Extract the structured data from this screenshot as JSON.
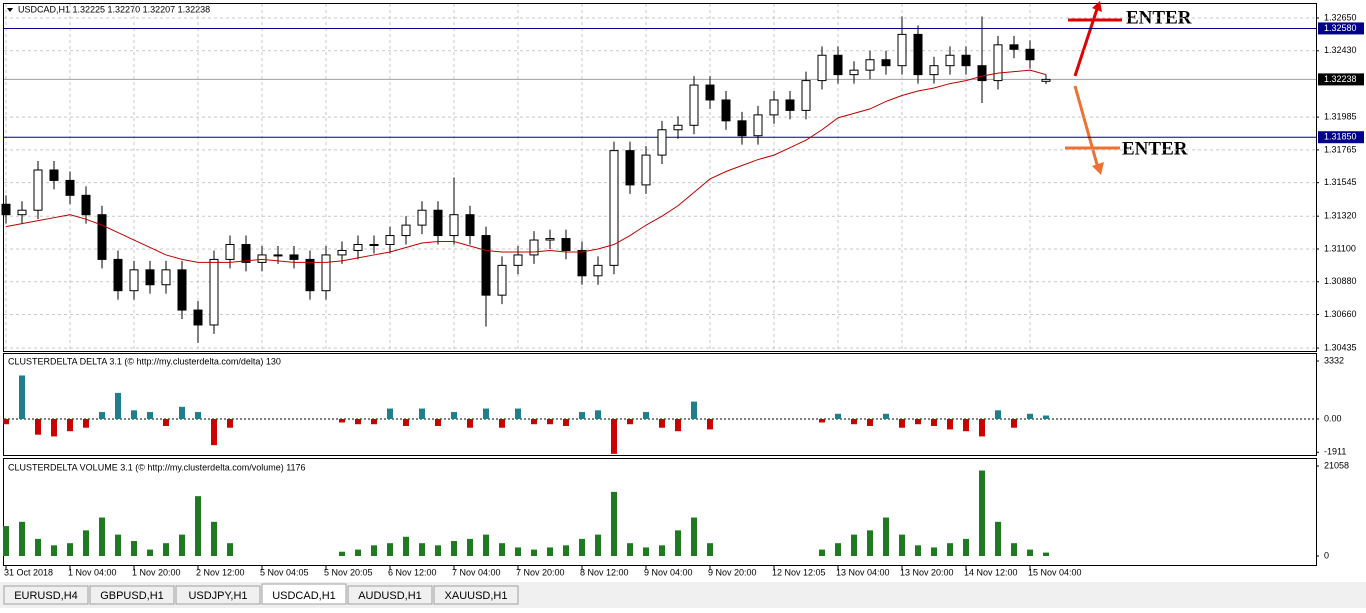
{
  "chart_data": [
    {
      "type": "candlestick",
      "title": "USDCAD,H1  1.32225 1.32270 1.32207 1.32238",
      "categories": [
        "31 Oct 2018",
        null,
        null,
        null,
        "1 Nov 04:00",
        null,
        null,
        null,
        "1 Nov 20:00",
        null,
        null,
        null,
        "2 Nov 12:00",
        null,
        null,
        null,
        "5 Nov 04:05",
        null,
        null,
        null,
        "5 Nov 20:05",
        null,
        null,
        null,
        "6 Nov 12:00",
        null,
        null,
        null,
        "7 Nov 04:00",
        null,
        null,
        null,
        "7 Nov 20:00",
        null,
        null,
        null,
        "8 Nov 12:00",
        null,
        null,
        null,
        "9 Nov 04:00",
        null,
        null,
        null,
        "9 Nov 20:00",
        null,
        null,
        null,
        "12 Nov 12:05",
        null,
        null,
        null,
        "13 Nov 04:00",
        null,
        null,
        null,
        "13 Nov 20:00",
        null,
        null,
        null,
        "14 Nov 12:00",
        null,
        null,
        null,
        "15 Nov 04:00",
        null
      ],
      "open": [
        1.314,
        1.3133,
        1.3136,
        1.3163,
        1.3156,
        1.3146,
        1.3133,
        1.3103,
        1.3082,
        1.3096,
        1.3086,
        1.3096,
        1.3069,
        1.3059,
        1.3103,
        1.3113,
        1.3101,
        1.3106,
        1.3106,
        1.3103,
        1.3082,
        1.3106,
        1.3109,
        1.3113,
        1.3113,
        1.3119,
        1.3126,
        1.3136,
        1.3119,
        1.3133,
        1.3119,
        1.3079,
        1.3099,
        1.3106,
        1.3116,
        1.3117,
        1.3109,
        1.3092,
        1.3099,
        1.3176,
        1.3153,
        1.3173,
        1.319,
        1.3193,
        1.322,
        1.321,
        1.3196,
        1.3186,
        1.32,
        1.321,
        1.3203,
        1.3223,
        1.324,
        1.3227,
        1.323,
        1.3237,
        1.3233,
        1.3254,
        1.3227,
        1.3233,
        1.324,
        1.3233,
        1.3223,
        1.3247,
        1.3244,
        1.32225
      ],
      "high": [
        1.3146,
        1.3142,
        1.3169,
        1.3169,
        1.3162,
        1.3152,
        1.3139,
        1.3109,
        1.3102,
        1.3102,
        1.3102,
        1.3102,
        1.3075,
        1.3109,
        1.3119,
        1.3119,
        1.3112,
        1.3112,
        1.3112,
        1.3109,
        1.3112,
        1.3115,
        1.3119,
        1.3119,
        1.3125,
        1.3132,
        1.3142,
        1.3142,
        1.3158,
        1.3139,
        1.3125,
        1.3105,
        1.3112,
        1.3122,
        1.3123,
        1.3123,
        1.3115,
        1.3105,
        1.3182,
        1.3182,
        1.3179,
        1.3196,
        1.3199,
        1.3226,
        1.3226,
        1.3216,
        1.3202,
        1.3206,
        1.3216,
        1.3216,
        1.3229,
        1.3246,
        1.3246,
        1.3236,
        1.3243,
        1.3243,
        1.3266,
        1.326,
        1.3239,
        1.3246,
        1.3246,
        1.3266,
        1.3253,
        1.3253,
        1.325,
        1.3227
      ],
      "low": [
        1.3127,
        1.3127,
        1.313,
        1.315,
        1.314,
        1.3127,
        1.3097,
        1.3076,
        1.3076,
        1.308,
        1.308,
        1.3063,
        1.3047,
        1.3053,
        1.3097,
        1.3095,
        1.3095,
        1.31,
        1.3097,
        1.3076,
        1.3076,
        1.31,
        1.3103,
        1.3107,
        1.3107,
        1.3113,
        1.312,
        1.3113,
        1.3113,
        1.3113,
        1.3058,
        1.3073,
        1.3093,
        1.31,
        1.311,
        1.3103,
        1.3086,
        1.3086,
        1.3093,
        1.3147,
        1.3147,
        1.3167,
        1.3184,
        1.3187,
        1.3204,
        1.319,
        1.318,
        1.318,
        1.3194,
        1.3197,
        1.3197,
        1.3217,
        1.3221,
        1.3221,
        1.3224,
        1.3227,
        1.3227,
        1.3221,
        1.3221,
        1.3227,
        1.3227,
        1.3208,
        1.3217,
        1.3238,
        1.3231,
        1.32207
      ],
      "close": [
        1.3133,
        1.3136,
        1.3163,
        1.3156,
        1.3146,
        1.3133,
        1.3103,
        1.3082,
        1.3096,
        1.3086,
        1.3096,
        1.3069,
        1.3059,
        1.3103,
        1.3113,
        1.3101,
        1.3106,
        1.3106,
        1.3103,
        1.3082,
        1.3106,
        1.3109,
        1.3113,
        1.3113,
        1.3119,
        1.3126,
        1.3136,
        1.3119,
        1.3133,
        1.3119,
        1.3079,
        1.3099,
        1.3106,
        1.3116,
        1.3117,
        1.3109,
        1.3092,
        1.3099,
        1.3176,
        1.3153,
        1.3173,
        1.319,
        1.3193,
        1.322,
        1.321,
        1.3196,
        1.3186,
        1.32,
        1.321,
        1.3203,
        1.3223,
        1.324,
        1.3227,
        1.323,
        1.3237,
        1.3233,
        1.3254,
        1.3227,
        1.3233,
        1.324,
        1.3233,
        1.3223,
        1.3247,
        1.3244,
        1.3237,
        1.32238
      ],
      "up_color": "#ffffff",
      "down_color": "#000000",
      "outline_color": "#000000",
      "ma": {
        "color": "#c00000",
        "values": [
          1.3125,
          1.3127,
          1.3129,
          1.3131,
          1.3133,
          1.313,
          1.3126,
          1.3121,
          1.3116,
          1.3111,
          1.3106,
          1.3103,
          1.3101,
          1.3101,
          1.3101,
          1.3102,
          1.3103,
          1.3102,
          1.3101,
          1.3101,
          1.3101,
          1.3102,
          1.3104,
          1.3106,
          1.3108,
          1.3111,
          1.3114,
          1.3115,
          1.3115,
          1.3112,
          1.3109,
          1.3108,
          1.3108,
          1.3108,
          1.3109,
          1.3108,
          1.3108,
          1.311,
          1.3113,
          1.3119,
          1.3126,
          1.3132,
          1.3139,
          1.3148,
          1.3157,
          1.3162,
          1.3166,
          1.317,
          1.3173,
          1.3178,
          1.3183,
          1.319,
          1.3198,
          1.3201,
          1.3204,
          1.3209,
          1.3213,
          1.3216,
          1.3218,
          1.3221,
          1.3223,
          1.3226,
          1.3228,
          1.3229,
          1.323,
          1.3227
        ]
      },
      "hlines": [
        {
          "value": 1.3258,
          "label": "1.32580",
          "color": "#00008b"
        },
        {
          "value": 1.3185,
          "label": "1.31850",
          "color": "#00008b"
        },
        {
          "value": 1.32238,
          "label": "1.32238",
          "color": "#a0a0a0"
        }
      ],
      "ylim": [
        1.30422,
        1.32744
      ],
      "yticks": [
        {
          "value": 1.3265,
          "label": "1.32650"
        },
        {
          "value": 1.3243,
          "label": "1.32430"
        },
        {
          "value": 1.31985,
          "label": "1.31985"
        },
        {
          "value": 1.31765,
          "label": "1.31765"
        },
        {
          "value": 1.31545,
          "label": "1.31545"
        },
        {
          "value": 1.3132,
          "label": "1.31320"
        },
        {
          "value": 1.311,
          "label": "1.31100"
        },
        {
          "value": 1.3088,
          "label": "1.30880"
        },
        {
          "value": 1.3066,
          "label": "1.30660"
        },
        {
          "value": 1.30435,
          "label": "1.30435"
        }
      ],
      "grid": true,
      "annotations": [
        {
          "text": "ENTER",
          "color": "#e00000"
        },
        {
          "text": "ENTER",
          "color": "#f07030"
        }
      ]
    },
    {
      "type": "bar",
      "title": "CLUSTERDELTA DELTA 3.1 (© http://my.clusterdelta.com/delta) 130",
      "values": [
        -300,
        2500,
        -900,
        -1000,
        -700,
        -500,
        400,
        1500,
        500,
        400,
        -400,
        700,
        400,
        -1500,
        -500,
        null,
        null,
        null,
        null,
        null,
        null,
        -200,
        -300,
        -300,
        600,
        -400,
        600,
        -400,
        400,
        -500,
        600,
        -500,
        600,
        -300,
        -300,
        -400,
        400,
        500,
        -2000,
        -300,
        400,
        -500,
        -700,
        1000,
        -600,
        null,
        null,
        null,
        null,
        null,
        null,
        -200,
        300,
        -300,
        -400,
        300,
        -500,
        -300,
        -400,
        -600,
        -700,
        -1000,
        500,
        -500,
        300,
        200
      ],
      "positive_color": "#1f7f8c",
      "negative_color": "#cc0000",
      "ylim": [
        -2125,
        3734
      ],
      "yticks": [
        3332,
        {
          "value": 0,
          "label": "0.00"
        },
        -1911
      ]
    },
    {
      "type": "bar",
      "title": "CLUSTERDELTA VOLUME 3.1 (© http://my.clusterdelta.com/volume) 1176",
      "values": [
        7000,
        8000,
        4000,
        2500,
        3000,
        6000,
        9000,
        5000,
        3500,
        1500,
        3000,
        5000,
        14000,
        8000,
        3000,
        null,
        null,
        null,
        null,
        null,
        null,
        1000,
        1500,
        2500,
        3000,
        4500,
        3000,
        2500,
        3500,
        4000,
        5000,
        3000,
        2000,
        1500,
        2000,
        2500,
        4000,
        5000,
        15000,
        3000,
        2000,
        2500,
        6000,
        9000,
        3000,
        null,
        null,
        null,
        null,
        null,
        null,
        1500,
        3000,
        5000,
        6000,
        9000,
        5000,
        2500,
        2000,
        3000,
        4000,
        20000,
        8000,
        3000,
        1500,
        800
      ],
      "color": "#1e7b1e",
      "ylim": [
        -2106,
        22696
      ],
      "yticks": [
        0,
        21058
      ]
    }
  ],
  "tabs": [
    "EURUSD,H4",
    "GBPUSD,H1",
    "USDJPY,H1",
    "USDCAD,H1",
    "AUDUSD,H1",
    "XAUUSD,H1"
  ],
  "active_tab": 3
}
